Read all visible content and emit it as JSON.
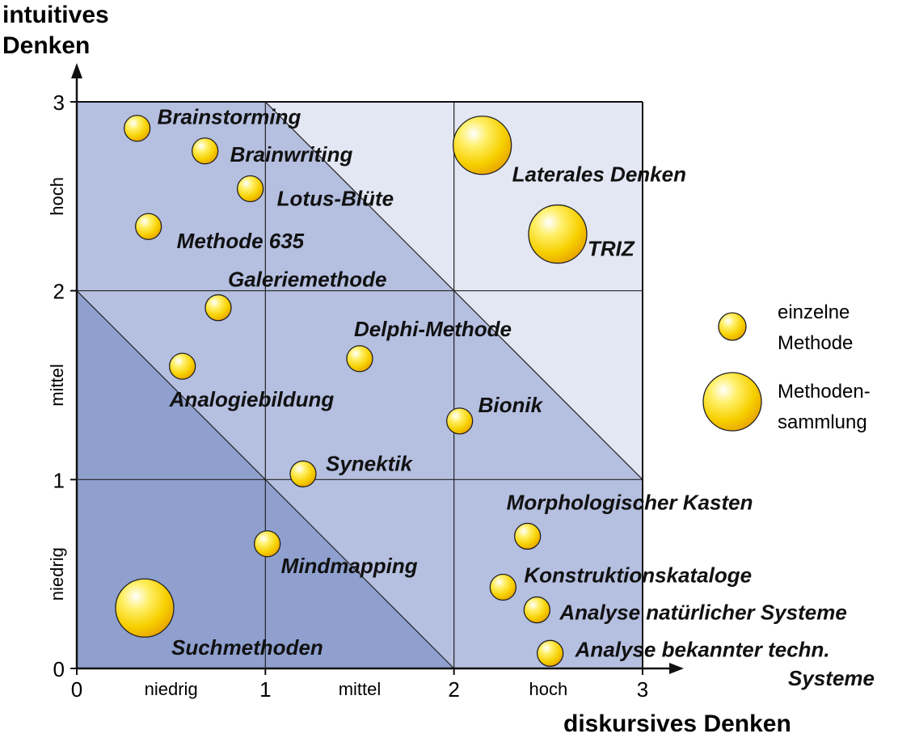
{
  "chart_data": {
    "type": "scatter",
    "title": "",
    "ylabel_lines": [
      "intuitives",
      "Denken"
    ],
    "xlabel": "diskursives Denken",
    "xlim": [
      0,
      3
    ],
    "ylim": [
      0,
      3
    ],
    "x_ticks": [
      "0",
      "1",
      "2",
      "3"
    ],
    "y_ticks": [
      "0",
      "1",
      "2",
      "3"
    ],
    "x_categories": [
      "niedrig",
      "mittel",
      "hoch"
    ],
    "y_categories": [
      "niedrig",
      "mittel",
      "hoch"
    ],
    "grid": true,
    "region_colors": {
      "low": "#8fa0cf",
      "mid": "#b5bfe0",
      "high": "#e3e6f3"
    },
    "bubble_color": "#f7d000",
    "points": [
      {
        "label": "Brainstorming",
        "x": 0.32,
        "y": 2.86,
        "kind": "single"
      },
      {
        "label": "Brainwriting",
        "x": 0.68,
        "y": 2.74,
        "kind": "single"
      },
      {
        "label": "Lotus-Blüte",
        "x": 0.92,
        "y": 2.54,
        "kind": "single"
      },
      {
        "label": "Methode 635",
        "x": 0.38,
        "y": 2.34,
        "kind": "single"
      },
      {
        "label": "Galeriemethode",
        "x": 0.75,
        "y": 1.91,
        "kind": "single"
      },
      {
        "label": "Delphi-Methode",
        "x": 1.5,
        "y": 1.64,
        "kind": "single"
      },
      {
        "label": "Analogiebildung",
        "x": 0.56,
        "y": 1.6,
        "kind": "single"
      },
      {
        "label": "Bionik",
        "x": 2.03,
        "y": 1.31,
        "kind": "single"
      },
      {
        "label": "Synektik",
        "x": 1.2,
        "y": 1.03,
        "kind": "single"
      },
      {
        "label": "Mindmapping",
        "x": 1.01,
        "y": 0.66,
        "kind": "single"
      },
      {
        "label": "Suchmethoden",
        "x": 0.36,
        "y": 0.32,
        "kind": "collection"
      },
      {
        "label": "Laterales Denken",
        "x": 2.15,
        "y": 2.77,
        "kind": "collection"
      },
      {
        "label": "TRIZ",
        "x": 2.55,
        "y": 2.3,
        "kind": "collection"
      },
      {
        "label": "Morphologischer Kasten",
        "x": 2.39,
        "y": 0.7,
        "kind": "single"
      },
      {
        "label": "Konstruktionskataloge",
        "x": 2.26,
        "y": 0.43,
        "kind": "single"
      },
      {
        "label": "Analyse natürlicher Systeme",
        "x": 2.44,
        "y": 0.31,
        "kind": "single"
      },
      {
        "label": "Analyse bekannter techn.",
        "label2": "Systeme",
        "x": 2.51,
        "y": 0.08,
        "kind": "single"
      }
    ],
    "legend": {
      "placement": "right",
      "single": [
        "einzelne",
        "Methode"
      ],
      "collection": [
        "Methoden-",
        "sammlung"
      ]
    }
  }
}
